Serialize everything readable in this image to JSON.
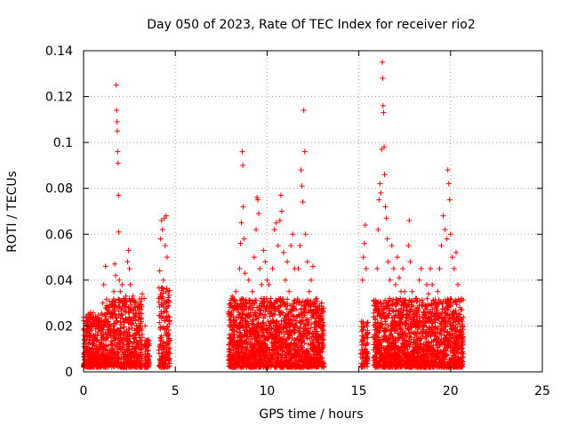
{
  "chart_data": {
    "type": "scatter",
    "title": "Day 050 of 2023, Rate Of TEC Index for receiver rio2",
    "xlabel": "GPS time / hours",
    "ylabel": "ROTI / TECUs",
    "xlim": [
      0,
      25
    ],
    "ylim": [
      0,
      0.14
    ],
    "x_ticks": [
      0,
      5,
      10,
      15,
      20,
      25
    ],
    "x_tick_labels": [
      "0",
      "5",
      "10",
      "15",
      "20",
      "25"
    ],
    "y_ticks": [
      0,
      0.02,
      0.04,
      0.06,
      0.08,
      0.1,
      0.12,
      0.14
    ],
    "y_tick_labels": [
      "0",
      "0.02",
      "0.04",
      "0.06",
      "0.08",
      "0.1",
      "0.12",
      "0.14"
    ],
    "grid": true,
    "marker": "+",
    "color": "#ff0000",
    "series": [
      {
        "points": [
          [
            0.05,
            0.003
          ],
          [
            0.1,
            0.012
          ],
          [
            0.15,
            0.02
          ],
          [
            0.2,
            0.008
          ],
          [
            0.25,
            0.025
          ],
          [
            0.3,
            0.015
          ],
          [
            0.35,
            0.022
          ],
          [
            0.4,
            0.006
          ],
          [
            0.45,
            0.018
          ],
          [
            0.5,
            0.01
          ],
          [
            0.55,
            0.024
          ],
          [
            0.6,
            0.005
          ],
          [
            0.65,
            0.016
          ],
          [
            0.7,
            0.021
          ],
          [
            0.75,
            0.009
          ],
          [
            0.8,
            0.02
          ],
          [
            0.85,
            0.013
          ],
          [
            0.9,
            0.018
          ],
          [
            0.95,
            0.007
          ],
          [
            1.0,
            0.02
          ],
          [
            1.05,
            0.03
          ],
          [
            1.1,
            0.038
          ],
          [
            1.15,
            0.025
          ],
          [
            1.2,
            0.046
          ],
          [
            1.25,
            0.028
          ],
          [
            1.3,
            0.015
          ],
          [
            1.4,
            0.026
          ],
          [
            1.5,
            0.02
          ],
          [
            1.55,
            0.012
          ],
          [
            1.6,
            0.028
          ],
          [
            1.65,
            0.035
          ],
          [
            1.7,
            0.047
          ],
          [
            1.75,
            0.042
          ],
          [
            1.78,
            0.125
          ],
          [
            1.8,
            0.114
          ],
          [
            1.82,
            0.109
          ],
          [
            1.84,
            0.105
          ],
          [
            1.86,
            0.096
          ],
          [
            1.88,
            0.091
          ],
          [
            1.9,
            0.077
          ],
          [
            1.92,
            0.061
          ],
          [
            1.95,
            0.04
          ],
          [
            2.0,
            0.035
          ],
          [
            2.05,
            0.025
          ],
          [
            2.1,
            0.038
          ],
          [
            2.15,
            0.03
          ],
          [
            2.2,
            0.022
          ],
          [
            2.3,
            0.033
          ],
          [
            2.4,
            0.048
          ],
          [
            2.45,
            0.053
          ],
          [
            2.5,
            0.045
          ],
          [
            2.55,
            0.038
          ],
          [
            2.6,
            0.027
          ],
          [
            2.7,
            0.033
          ],
          [
            2.8,
            0.03
          ],
          [
            2.9,
            0.02
          ],
          [
            3.0,
            0.028
          ],
          [
            3.05,
            0.015
          ],
          [
            3.1,
            0.01
          ],
          [
            3.2,
            0.034
          ],
          [
            3.3,
            0.032
          ],
          [
            3.35,
            0.02
          ],
          [
            3.4,
            0.012
          ],
          [
            3.5,
            0.007
          ],
          [
            3.55,
            0.005
          ],
          [
            4.1,
            0.032
          ],
          [
            4.15,
            0.044
          ],
          [
            4.2,
            0.058
          ],
          [
            4.25,
            0.066
          ],
          [
            4.3,
            0.062
          ],
          [
            4.35,
            0.04
          ],
          [
            4.4,
            0.067
          ],
          [
            4.45,
            0.055
          ],
          [
            4.5,
            0.068
          ],
          [
            4.55,
            0.05
          ],
          [
            4.6,
            0.035
          ],
          [
            4.65,
            0.022
          ],
          [
            4.7,
            0.008
          ],
          [
            7.95,
            0.012
          ],
          [
            8.0,
            0.025
          ],
          [
            8.1,
            0.033
          ],
          [
            8.2,
            0.02
          ],
          [
            8.3,
            0.035
          ],
          [
            8.4,
            0.028
          ],
          [
            8.5,
            0.045
          ],
          [
            8.55,
            0.056
          ],
          [
            8.6,
            0.065
          ],
          [
            8.65,
            0.096
          ],
          [
            8.68,
            0.09
          ],
          [
            8.7,
            0.072
          ],
          [
            8.75,
            0.058
          ],
          [
            8.8,
            0.043
          ],
          [
            8.9,
            0.03
          ],
          [
            9.0,
            0.04
          ],
          [
            9.1,
            0.028
          ],
          [
            9.2,
            0.035
          ],
          [
            9.3,
            0.05
          ],
          [
            9.4,
            0.062
          ],
          [
            9.45,
            0.076
          ],
          [
            9.5,
            0.075
          ],
          [
            9.55,
            0.069
          ],
          [
            9.6,
            0.045
          ],
          [
            9.7,
            0.038
          ],
          [
            9.8,
            0.053
          ],
          [
            9.9,
            0.048
          ],
          [
            10.0,
            0.04
          ],
          [
            10.1,
            0.038
          ],
          [
            10.2,
            0.032
          ],
          [
            10.3,
            0.045
          ],
          [
            10.4,
            0.062
          ],
          [
            10.5,
            0.065
          ],
          [
            10.6,
            0.055
          ],
          [
            10.7,
            0.066
          ],
          [
            10.75,
            0.077
          ],
          [
            10.8,
            0.07
          ],
          [
            10.9,
            0.052
          ],
          [
            11.0,
            0.04
          ],
          [
            11.1,
            0.048
          ],
          [
            11.2,
            0.035
          ],
          [
            11.3,
            0.055
          ],
          [
            11.4,
            0.06
          ],
          [
            11.5,
            0.045
          ],
          [
            11.6,
            0.03
          ],
          [
            11.7,
            0.045
          ],
          [
            11.8,
            0.055
          ],
          [
            11.85,
            0.088
          ],
          [
            11.9,
            0.081
          ],
          [
            11.95,
            0.074
          ],
          [
            12.0,
            0.114
          ],
          [
            12.05,
            0.096
          ],
          [
            12.1,
            0.06
          ],
          [
            12.2,
            0.048
          ],
          [
            12.3,
            0.035
          ],
          [
            12.4,
            0.04
          ],
          [
            12.5,
            0.046
          ],
          [
            12.6,
            0.03
          ],
          [
            12.7,
            0.026
          ],
          [
            12.8,
            0.02
          ],
          [
            12.9,
            0.015
          ],
          [
            13.0,
            0.01
          ],
          [
            15.1,
            0.008
          ],
          [
            15.15,
            0.022
          ],
          [
            15.2,
            0.04
          ],
          [
            15.25,
            0.05
          ],
          [
            15.3,
            0.056
          ],
          [
            15.35,
            0.064
          ],
          [
            15.4,
            0.045
          ],
          [
            15.45,
            0.02
          ],
          [
            15.5,
            0.008
          ],
          [
            15.8,
            0.015
          ],
          [
            15.9,
            0.03
          ],
          [
            16.0,
            0.045
          ],
          [
            16.05,
            0.062
          ],
          [
            16.1,
            0.075
          ],
          [
            16.15,
            0.082
          ],
          [
            16.2,
            0.078
          ],
          [
            16.25,
            0.097
          ],
          [
            16.28,
            0.135
          ],
          [
            16.3,
            0.128
          ],
          [
            16.32,
            0.116
          ],
          [
            16.35,
            0.113
          ],
          [
            16.38,
            0.098
          ],
          [
            16.4,
            0.086
          ],
          [
            16.45,
            0.072
          ],
          [
            16.5,
            0.067
          ],
          [
            16.55,
            0.058
          ],
          [
            16.6,
            0.048
          ],
          [
            16.7,
            0.04
          ],
          [
            16.8,
            0.055
          ],
          [
            16.9,
            0.045
          ],
          [
            17.0,
            0.038
          ],
          [
            17.1,
            0.05
          ],
          [
            17.2,
            0.041
          ],
          [
            17.3,
            0.035
          ],
          [
            17.4,
            0.045
          ],
          [
            17.5,
            0.035
          ],
          [
            17.6,
            0.028
          ],
          [
            17.7,
            0.055
          ],
          [
            17.75,
            0.066
          ],
          [
            17.8,
            0.048
          ],
          [
            17.9,
            0.035
          ],
          [
            18.0,
            0.025
          ],
          [
            18.1,
            0.032
          ],
          [
            18.2,
            0.028
          ],
          [
            18.3,
            0.04
          ],
          [
            18.4,
            0.045
          ],
          [
            18.5,
            0.03
          ],
          [
            18.6,
            0.022
          ],
          [
            18.7,
            0.038
          ],
          [
            18.8,
            0.034
          ],
          [
            18.9,
            0.045
          ],
          [
            19.0,
            0.038
          ],
          [
            19.1,
            0.03
          ],
          [
            19.2,
            0.025
          ],
          [
            19.3,
            0.035
          ],
          [
            19.4,
            0.045
          ],
          [
            19.5,
            0.055
          ],
          [
            19.6,
            0.068
          ],
          [
            19.7,
            0.062
          ],
          [
            19.8,
            0.058
          ],
          [
            19.85,
            0.088
          ],
          [
            19.9,
            0.082
          ],
          [
            19.95,
            0.075
          ],
          [
            20.0,
            0.06
          ],
          [
            20.1,
            0.05
          ],
          [
            20.2,
            0.045
          ],
          [
            20.3,
            0.052
          ],
          [
            20.4,
            0.038
          ],
          [
            20.5,
            0.025
          ],
          [
            20.6,
            0.015
          ],
          [
            20.7,
            0.008
          ]
        ]
      }
    ],
    "dense_clusters": [
      {
        "x_range": [
          0.0,
          1.2
        ],
        "y_min": 0.0,
        "y_max": 0.024,
        "count": 400
      },
      {
        "x_range": [
          1.2,
          3.2
        ],
        "y_min": 0.0,
        "y_max": 0.03,
        "count": 600
      },
      {
        "x_range": [
          3.3,
          3.6
        ],
        "y_min": 0.0,
        "y_max": 0.012,
        "count": 60
      },
      {
        "x_range": [
          4.1,
          4.7
        ],
        "y_min": 0.0,
        "y_max": 0.035,
        "count": 180
      },
      {
        "x_range": [
          7.9,
          13.1
        ],
        "y_min": 0.0,
        "y_max": 0.03,
        "count": 1700
      },
      {
        "x_range": [
          15.1,
          15.5
        ],
        "y_min": 0.0,
        "y_max": 0.02,
        "count": 80
      },
      {
        "x_range": [
          15.8,
          20.7
        ],
        "y_min": 0.0,
        "y_max": 0.03,
        "count": 1600
      }
    ]
  }
}
